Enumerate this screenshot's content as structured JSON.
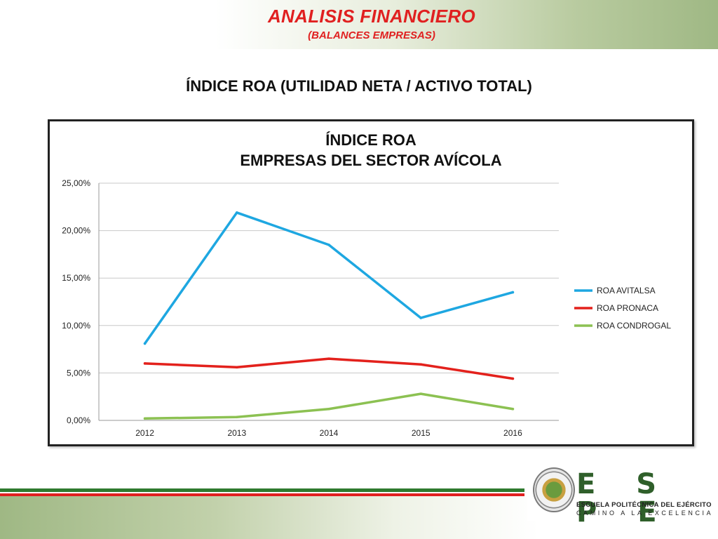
{
  "header": {
    "title": "ANALISIS FINANCIERO",
    "subtitle": "(BALANCES EMPRESAS)"
  },
  "slide": {
    "title": "ÍNDICE ROA (UTILIDAD NETA / ACTIVO TOTAL)"
  },
  "colors": {
    "header_red": "#e02020",
    "avitalsa": "#1ea7e1",
    "pronaca": "#e3211c",
    "condrogal": "#8cc152",
    "logo_green": "#2f5f2a"
  },
  "logo": {
    "letters": "E S P E",
    "line1": "ESCUELA POLITÉCNICA DEL EJÉRCITO",
    "line2": "CAMINO A LA EXCELENCIA",
    "seal_icon": "university-seal-icon"
  },
  "chart_data": {
    "type": "line",
    "title": "ÍNDICE ROA",
    "subtitle": "EMPRESAS DEL SECTOR AVÍCOLA",
    "categories": [
      "2012",
      "2013",
      "2014",
      "2015",
      "2016"
    ],
    "series": [
      {
        "name": "ROA AVITALSA",
        "values": [
          8.1,
          21.9,
          18.5,
          10.8,
          13.5
        ],
        "color": "#1ea7e1"
      },
      {
        "name": "ROA PRONACA",
        "values": [
          6.0,
          5.6,
          6.5,
          5.9,
          4.4
        ],
        "color": "#e3211c"
      },
      {
        "name": "ROA CONDROGAL",
        "values": [
          0.2,
          0.35,
          1.2,
          2.8,
          1.2
        ],
        "color": "#8cc152"
      }
    ],
    "ylim": [
      0,
      25
    ],
    "yticks": [
      0,
      5,
      10,
      15,
      20,
      25
    ],
    "ytick_labels": [
      "0,00%",
      "5,00%",
      "10,00%",
      "15,00%",
      "20,00%",
      "25,00%"
    ],
    "grid": true,
    "legend": "right"
  }
}
